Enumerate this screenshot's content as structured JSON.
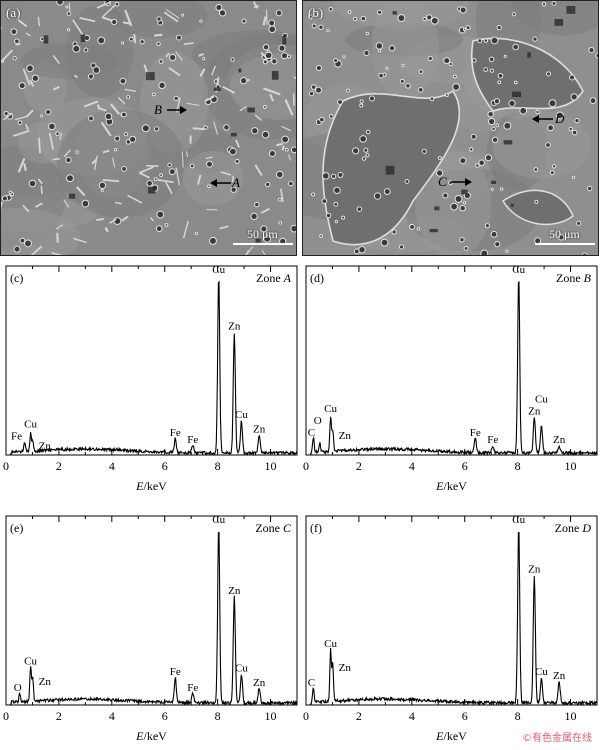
{
  "micrographs": [
    {
      "id": "a",
      "label": "(a)",
      "scale_bar": "50 μm",
      "markers": [
        {
          "letter": "B",
          "arrow": "right"
        },
        {
          "letter": "A",
          "arrow": "left"
        }
      ]
    },
    {
      "id": "b",
      "label": "(b)",
      "scale_bar": "50 μm",
      "markers": [
        {
          "letter": "D",
          "arrow": "left"
        },
        {
          "letter": "C",
          "arrow": "right"
        }
      ]
    }
  ],
  "chart_data": [
    {
      "type": "line",
      "panel_label": "(c)",
      "zone_label": "Zone ",
      "zone_letter": "A",
      "xlabel_italic": "E",
      "xlabel_unit": "/keV",
      "xlim": [
        0,
        11
      ],
      "ylim": [
        0,
        100
      ],
      "xticks": [
        0,
        2,
        4,
        6,
        8,
        10
      ],
      "peaks": [
        {
          "element": "Fe",
          "energy": 0.7,
          "height": 6
        },
        {
          "element": "Cu",
          "energy": 0.93,
          "height": 10
        },
        {
          "element": "Zn",
          "energy": 1.01,
          "height": 6
        },
        {
          "element": "Fe",
          "energy": 6.4,
          "height": 8
        },
        {
          "element": "Fe",
          "energy": 7.06,
          "height": 4
        },
        {
          "element": "Cu",
          "energy": 8.04,
          "height": 100
        },
        {
          "element": "Zn",
          "energy": 8.63,
          "height": 68
        },
        {
          "element": "Cu",
          "energy": 8.9,
          "height": 18
        },
        {
          "element": "Zn",
          "energy": 9.57,
          "height": 10
        }
      ]
    },
    {
      "type": "line",
      "panel_label": "(d)",
      "zone_label": "Zone ",
      "zone_letter": "B",
      "xlabel_italic": "E",
      "xlabel_unit": "/keV",
      "xlim": [
        0,
        11
      ],
      "ylim": [
        0,
        100
      ],
      "xticks": [
        0,
        2,
        4,
        6,
        8,
        10
      ],
      "peaks": [
        {
          "element": "C",
          "energy": 0.28,
          "height": 8
        },
        {
          "element": "O",
          "energy": 0.52,
          "height": 5
        },
        {
          "element": "Cu",
          "energy": 0.93,
          "height": 20
        },
        {
          "element": "Zn",
          "energy": 1.01,
          "height": 12
        },
        {
          "element": "Fe",
          "energy": 6.4,
          "height": 8
        },
        {
          "element": "Fe",
          "energy": 7.06,
          "height": 4
        },
        {
          "element": "Cu",
          "energy": 8.04,
          "height": 100
        },
        {
          "element": "Zn",
          "energy": 8.63,
          "height": 20
        },
        {
          "element": "Cu",
          "energy": 8.9,
          "height": 16
        },
        {
          "element": "Zn",
          "energy": 9.57,
          "height": 4
        }
      ]
    },
    {
      "type": "line",
      "panel_label": "(e)",
      "zone_label": "Zone ",
      "zone_letter": "C",
      "xlabel_italic": "E",
      "xlabel_unit": "/keV",
      "xlim": [
        0,
        11
      ],
      "ylim": [
        0,
        100
      ],
      "xticks": [
        0,
        2,
        4,
        6,
        8,
        10
      ],
      "peaks": [
        {
          "element": "O",
          "energy": 0.52,
          "height": 5
        },
        {
          "element": "Cu",
          "energy": 0.93,
          "height": 20
        },
        {
          "element": "Zn",
          "energy": 1.01,
          "height": 14
        },
        {
          "element": "Fe",
          "energy": 6.4,
          "height": 14
        },
        {
          "element": "Fe",
          "energy": 7.06,
          "height": 5
        },
        {
          "element": "Cu",
          "energy": 8.04,
          "height": 100
        },
        {
          "element": "Zn",
          "energy": 8.63,
          "height": 60
        },
        {
          "element": "Cu",
          "energy": 8.9,
          "height": 16
        },
        {
          "element": "Zn",
          "energy": 9.57,
          "height": 8
        }
      ]
    },
    {
      "type": "line",
      "panel_label": "(f)",
      "zone_label": "Zone ",
      "zone_letter": "D",
      "xlabel_italic": "E",
      "xlabel_unit": "/keV",
      "xlim": [
        0,
        11
      ],
      "ylim": [
        0,
        100
      ],
      "xticks": [
        0,
        2,
        4,
        6,
        8,
        10
      ],
      "peaks": [
        {
          "element": "C",
          "energy": 0.28,
          "height": 8
        },
        {
          "element": "Cu",
          "energy": 0.93,
          "height": 30
        },
        {
          "element": "Zn",
          "energy": 1.01,
          "height": 22
        },
        {
          "element": "Cu",
          "energy": 8.04,
          "height": 100
        },
        {
          "element": "Zn",
          "energy": 8.63,
          "height": 72
        },
        {
          "element": "Cu",
          "energy": 8.9,
          "height": 14
        },
        {
          "element": "Zn",
          "energy": 9.57,
          "height": 12
        }
      ]
    }
  ],
  "watermark": "©有色金属在线",
  "colors": {
    "trace": "#000000",
    "sem_base": "#8e8e8e",
    "sem_grain": "#cfcfcf"
  }
}
